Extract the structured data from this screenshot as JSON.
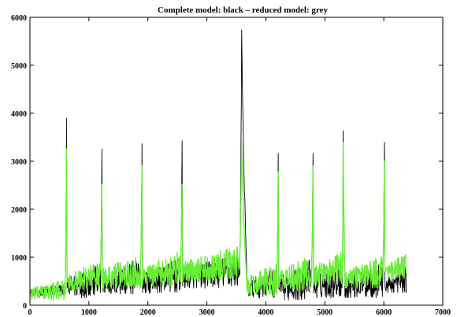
{
  "chart_data": {
    "type": "line",
    "title": "Complete model: black – reduced model: grey",
    "xlabel": "",
    "ylabel": "",
    "xlim": [
      0,
      7000
    ],
    "ylim": [
      0,
      6000
    ],
    "x_ticks": [
      0,
      1000,
      2000,
      3000,
      4000,
      5000,
      6000,
      7000
    ],
    "y_ticks": [
      0,
      1000,
      2000,
      3000,
      4000,
      5000,
      6000
    ],
    "x_tick_labels": [
      "0",
      "1000",
      "2000",
      "3000",
      "4000",
      "5000",
      "6000",
      "7000"
    ],
    "y_tick_labels": [
      "0",
      "1000",
      "2000",
      "3000",
      "4000",
      "5000",
      "6000"
    ],
    "grid": false,
    "x_range": [
      0,
      6380
    ],
    "series": [
      {
        "name": "Complete model",
        "color": "#000000",
        "baseline_segments": [
          {
            "x": [
              0,
              600
            ],
            "low": 200,
            "high": 450
          },
          {
            "x": [
              630,
              1200
            ],
            "low": 150,
            "high": 900
          },
          {
            "x": [
              1230,
              1880
            ],
            "low": 200,
            "high": 1000
          },
          {
            "x": [
              1910,
              2560
            ],
            "low": 250,
            "high": 1000
          },
          {
            "x": [
              2590,
              3560
            ],
            "low": 350,
            "high": 1100
          },
          {
            "x": [
              3680,
              4190
            ],
            "low": 150,
            "high": 800
          },
          {
            "x": [
              4220,
              4780
            ],
            "low": 100,
            "high": 1000
          },
          {
            "x": [
              4810,
              5300
            ],
            "low": 150,
            "high": 950
          },
          {
            "x": [
              5340,
              5990
            ],
            "low": 150,
            "high": 900
          },
          {
            "x": [
              6020,
              6380
            ],
            "low": 250,
            "high": 800
          }
        ],
        "spikes": [
          {
            "x": 620,
            "peak": 3950
          },
          {
            "x": 1220,
            "peak": 3350
          },
          {
            "x": 1900,
            "peak": 3450
          },
          {
            "x": 2580,
            "peak": 3700
          },
          {
            "x": 3590,
            "peak": 5950
          },
          {
            "x": 4210,
            "peak": 3300
          },
          {
            "x": 4800,
            "peak": 3450
          },
          {
            "x": 5310,
            "peak": 3650
          },
          {
            "x": 6010,
            "peak": 3700
          }
        ]
      },
      {
        "name": "Reduced model",
        "color": "#66ee33",
        "baseline_segments": [
          {
            "x": [
              0,
              600
            ],
            "low": 100,
            "high": 550
          },
          {
            "x": [
              630,
              1200
            ],
            "low": 300,
            "high": 950
          },
          {
            "x": [
              1230,
              1880
            ],
            "low": 350,
            "high": 1100
          },
          {
            "x": [
              1910,
              2560
            ],
            "low": 400,
            "high": 1150
          },
          {
            "x": [
              2590,
              3560
            ],
            "low": 500,
            "high": 1250
          },
          {
            "x": [
              3680,
              4190
            ],
            "low": 200,
            "high": 900
          },
          {
            "x": [
              4220,
              4780
            ],
            "low": 300,
            "high": 1050
          },
          {
            "x": [
              4810,
              5300
            ],
            "low": 400,
            "high": 1150
          },
          {
            "x": [
              5340,
              5990
            ],
            "low": 350,
            "high": 1050
          },
          {
            "x": [
              6020,
              6380
            ],
            "low": 450,
            "high": 1100
          }
        ],
        "spikes": [
          {
            "x": 620,
            "peak": 3350
          },
          {
            "x": 1220,
            "peak": 2650
          },
          {
            "x": 1900,
            "peak": 3000
          },
          {
            "x": 2580,
            "peak": 2650
          },
          {
            "x": 3590,
            "peak": 3450
          },
          {
            "x": 4210,
            "peak": 2800
          },
          {
            "x": 4800,
            "peak": 3050
          },
          {
            "x": 5310,
            "peak": 3750
          },
          {
            "x": 6010,
            "peak": 3350
          }
        ]
      }
    ]
  }
}
